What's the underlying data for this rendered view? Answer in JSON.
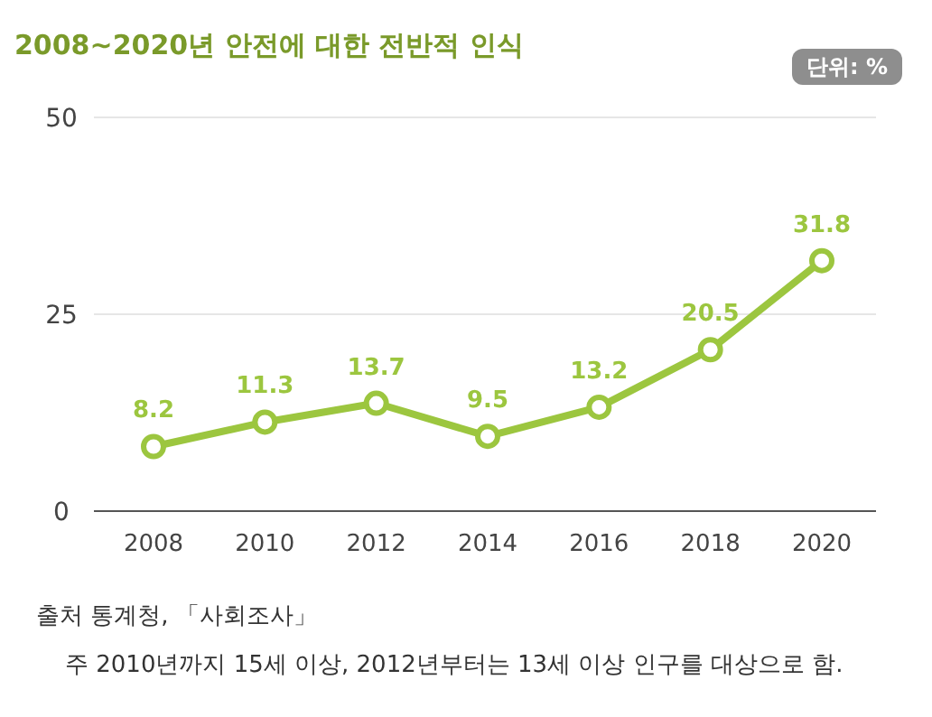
{
  "chart_data": {
    "type": "line",
    "title": "2008~2020년 안전에 대한 전반적 인식",
    "categories": [
      "2008",
      "2010",
      "2012",
      "2014",
      "2016",
      "2018",
      "2020"
    ],
    "series": [
      {
        "color": "#9cc63f",
        "values": [
          8.2,
          11.3,
          13.7,
          9.5,
          13.2,
          20.5,
          31.8
        ]
      }
    ],
    "ylim": [
      0,
      50
    ],
    "yticks": [
      0,
      25,
      50
    ],
    "grid": "y",
    "marker": "circle",
    "line_style": "solid",
    "data_labels": true,
    "annotations": [
      "단위: %",
      "출처 통계청, 「사회조사」",
      "주 2010년까지 15세 이상, 2012년부터는 13세 이상 인구를 대상으로 함."
    ]
  }
}
